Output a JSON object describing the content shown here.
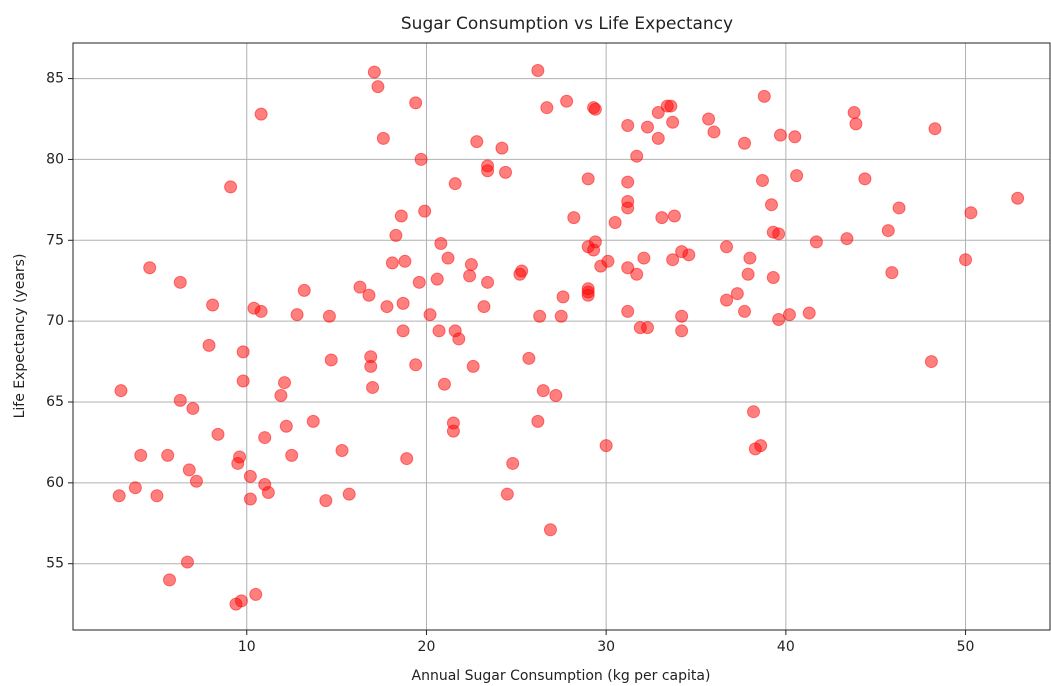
{
  "chart_data": {
    "type": "scatter",
    "title": "Sugar Consumption vs Life Expectancy",
    "x_label": "Annual Sugar Consumption (kg per capita)",
    "y_label": "Life Expectancy (years)",
    "color": "#ff0000",
    "grid": true,
    "xlim": [
      0.33,
      54.7
    ],
    "ylim": [
      50.9,
      87.2
    ],
    "xticks": [
      10,
      20,
      30,
      40,
      50
    ],
    "yticks": [
      55,
      60,
      65,
      70,
      75,
      80,
      85
    ],
    "x": [
      2.9,
      3.0,
      3.8,
      4.1,
      4.6,
      5.0,
      5.6,
      5.7,
      6.3,
      6.3,
      6.7,
      6.8,
      7.0,
      7.2,
      7.9,
      8.1,
      8.4,
      9.1,
      9.4,
      9.5,
      9.6,
      9.7,
      9.8,
      9.8,
      10.2,
      10.2,
      10.4,
      10.5,
      10.8,
      10.8,
      11.0,
      11.0,
      11.2,
      11.9,
      12.1,
      12.2,
      12.5,
      12.8,
      13.2,
      13.7,
      14.4,
      14.6,
      14.7,
      15.3,
      15.7,
      16.3,
      16.8,
      16.9,
      16.9,
      17.0,
      17.1,
      17.3,
      17.6,
      17.8,
      18.1,
      18.3,
      18.6,
      18.7,
      18.7,
      18.8,
      18.9,
      19.4,
      19.4,
      19.6,
      19.7,
      19.9,
      20.2,
      20.6,
      20.7,
      20.8,
      21.0,
      21.2,
      21.5,
      21.5,
      21.6,
      21.6,
      21.8,
      22.4,
      22.5,
      22.6,
      22.8,
      23.2,
      23.4,
      23.4,
      23.4,
      24.2,
      24.4,
      24.5,
      24.8,
      25.2,
      25.3,
      25.7,
      26.2,
      26.2,
      26.3,
      26.5,
      26.7,
      26.9,
      27.2,
      27.5,
      27.6,
      27.8,
      28.2,
      29.0,
      29.0,
      29.0,
      29.0,
      29.0,
      29.3,
      29.4,
      29.3,
      29.4,
      29.7,
      30.0,
      30.1,
      30.5,
      31.2,
      31.2,
      31.2,
      31.2,
      31.2,
      31.2,
      31.7,
      31.7,
      31.9,
      32.1,
      32.3,
      32.3,
      32.9,
      32.9,
      33.1,
      33.4,
      33.6,
      33.7,
      33.7,
      33.8,
      34.2,
      34.2,
      34.2,
      34.6,
      35.7,
      36.0,
      36.7,
      36.7,
      37.3,
      37.7,
      37.7,
      37.9,
      38.0,
      38.2,
      38.3,
      38.6,
      38.7,
      38.8,
      39.2,
      39.3,
      39.3,
      39.6,
      39.6,
      39.7,
      40.2,
      40.5,
      40.6,
      41.3,
      41.7,
      43.4,
      43.8,
      43.9,
      44.4,
      45.7,
      45.9,
      46.3,
      48.1,
      48.3,
      50.0,
      50.3,
      52.9
    ],
    "values": [
      59.2,
      65.7,
      59.7,
      61.7,
      73.3,
      59.2,
      61.7,
      54.0,
      72.4,
      65.1,
      55.1,
      60.8,
      64.6,
      60.1,
      68.5,
      71.0,
      63.0,
      78.3,
      52.5,
      61.2,
      61.6,
      52.7,
      68.1,
      66.3,
      59.0,
      60.4,
      70.8,
      53.1,
      82.8,
      70.6,
      59.9,
      62.8,
      59.4,
      65.4,
      66.2,
      63.5,
      61.7,
      70.4,
      71.9,
      63.8,
      58.9,
      70.3,
      67.6,
      62.0,
      59.3,
      72.1,
      71.6,
      67.8,
      67.2,
      65.9,
      85.4,
      84.5,
      81.3,
      70.9,
      73.6,
      75.3,
      76.5,
      69.4,
      71.1,
      73.7,
      61.5,
      83.5,
      67.3,
      72.4,
      80.0,
      76.8,
      70.4,
      72.6,
      69.4,
      74.8,
      66.1,
      73.9,
      63.7,
      63.2,
      69.4,
      78.5,
      68.9,
      72.8,
      73.5,
      67.2,
      81.1,
      70.9,
      79.6,
      79.3,
      72.4,
      80.7,
      79.2,
      59.3,
      61.2,
      72.9,
      73.1,
      67.7,
      85.5,
      63.8,
      70.3,
      65.7,
      83.2,
      57.1,
      65.4,
      70.3,
      71.5,
      83.6,
      76.4,
      78.8,
      74.6,
      71.8,
      72.0,
      71.6,
      83.2,
      83.1,
      74.4,
      74.9,
      73.4,
      62.3,
      73.7,
      76.1,
      82.1,
      78.6,
      77.4,
      77.0,
      73.3,
      70.6,
      80.2,
      72.9,
      69.6,
      73.9,
      69.6,
      82.0,
      82.9,
      81.3,
      76.4,
      83.3,
      83.3,
      82.3,
      73.8,
      76.5,
      74.3,
      70.3,
      69.4,
      74.1,
      82.5,
      81.7,
      74.6,
      71.3,
      71.7,
      81.0,
      70.6,
      72.9,
      73.9,
      64.4,
      62.1,
      62.3,
      78.7,
      83.9,
      77.2,
      75.5,
      72.7,
      75.4,
      70.1,
      81.5,
      70.4,
      81.4,
      79.0,
      70.5,
      74.9,
      75.1,
      82.9,
      82.2,
      78.8,
      75.6,
      73.0,
      77.0,
      67.5,
      81.9,
      73.8,
      76.7,
      77.6
    ]
  }
}
